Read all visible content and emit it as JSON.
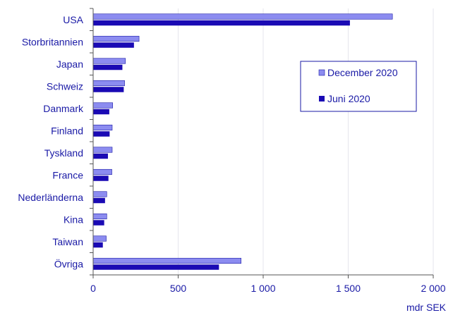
{
  "chart_data": {
    "type": "bar",
    "orientation": "horizontal",
    "categories": [
      "USA",
      "Storbritannien",
      "Japan",
      "Schweiz",
      "Danmark",
      "Finland",
      "Tyskland",
      "France",
      "Nederländerna",
      "Kina",
      "Taiwan",
      "Övriga"
    ],
    "series": [
      {
        "name": "December 2020",
        "values": [
          1760,
          270,
          190,
          185,
          115,
          112,
          112,
          110,
          80,
          80,
          77,
          870
        ],
        "color": "#8c8cf0"
      },
      {
        "name": "Juni 2020",
        "values": [
          1510,
          240,
          172,
          180,
          95,
          97,
          87,
          90,
          70,
          65,
          57,
          740
        ],
        "color": "#1a0ab4"
      }
    ],
    "xlim": [
      0,
      2000
    ],
    "xticks": [
      0,
      500,
      1000,
      1500,
      2000
    ],
    "xtick_labels": [
      "0",
      "500",
      "1 000",
      "1 500",
      "2 000"
    ],
    "xlabel": "mdr SEK",
    "ylabel": "",
    "title": "",
    "grid": "vertical",
    "legend": "top-right",
    "text_color": "#1a1aa6",
    "grid_color": "#e6e6ec"
  }
}
